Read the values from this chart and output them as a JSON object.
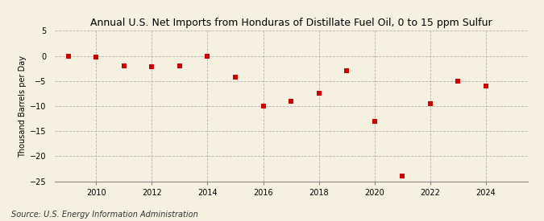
{
  "title": "Annual U.S. Net Imports from Honduras of Distillate Fuel Oil, 0 to 15 ppm Sulfur",
  "ylabel": "Thousand Barrels per Day",
  "source": "Source: U.S. Energy Information Administration",
  "years": [
    2009,
    2010,
    2011,
    2012,
    2013,
    2014,
    2015,
    2016,
    2017,
    2018,
    2019,
    2020,
    2021,
    2022,
    2023,
    2024
  ],
  "values": [
    0.0,
    -0.2,
    -2.0,
    -2.1,
    -2.0,
    0.0,
    -4.2,
    -10.0,
    -9.0,
    -7.5,
    -3.0,
    -13.0,
    -24.0,
    -9.5,
    -5.0,
    -6.0
  ],
  "marker_color": "#cc0000",
  "marker_size": 4,
  "background_color": "#f5f0e0",
  "grid_color": "#aaaaaa",
  "ylim": [
    -25,
    5
  ],
  "yticks": [
    5,
    0,
    -5,
    -10,
    -15,
    -20,
    -25
  ],
  "xticks": [
    2010,
    2012,
    2014,
    2016,
    2018,
    2020,
    2022,
    2024
  ],
  "title_fontsize": 9,
  "axis_fontsize": 7,
  "source_fontsize": 7
}
